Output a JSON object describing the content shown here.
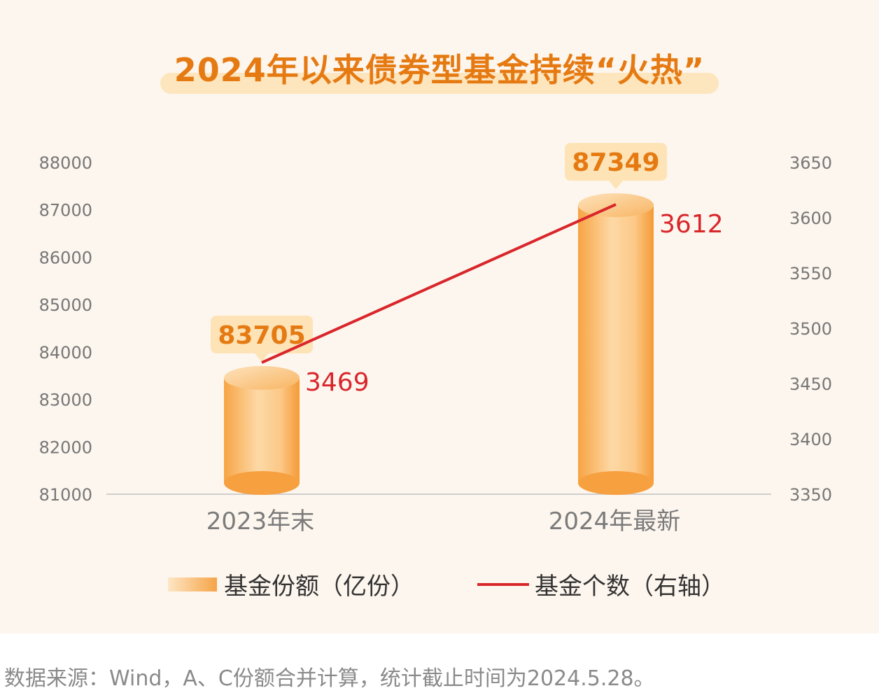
{
  "chart_data": {
    "type": "bar+line",
    "title": "2024年以来债券型基金持续“火热”",
    "categories": [
      "2023年末",
      "2024年最新"
    ],
    "series": [
      {
        "name": "基金份额（亿份）",
        "type": "bar",
        "axis": "left",
        "values": [
          83705,
          87349
        ]
      },
      {
        "name": "基金个数（右轴）",
        "type": "line",
        "axis": "right",
        "values": [
          3469,
          3612
        ]
      }
    ],
    "y_left": {
      "min": 81000,
      "max": 88000,
      "ticks": [
        88000,
        87000,
        86000,
        85000,
        84000,
        83000,
        82000,
        81000
      ]
    },
    "y_right": {
      "min": 3350,
      "max": 3650,
      "ticks": [
        3650,
        3600,
        3550,
        3500,
        3450,
        3400,
        3350
      ]
    },
    "bar_labels": [
      "83705",
      "87349"
    ],
    "line_labels": [
      "3469",
      "3612"
    ],
    "legend_position": "bottom",
    "colors": {
      "bar": "#f7a94a",
      "bar_light": "#fcd9a4",
      "line": "#d9262b",
      "label_box": "#fde3b6",
      "label_text": "#e67a12",
      "axis_text": "#777777"
    }
  },
  "source": "数据来源：Wind，A、C份额合并计算，统计截止时间为2024.5.28。"
}
